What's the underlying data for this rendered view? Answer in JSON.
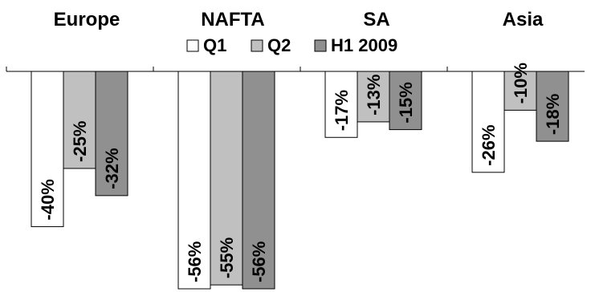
{
  "chart_data": {
    "type": "bar",
    "categories": [
      "Europe",
      "NAFTA",
      "SA",
      "Asia"
    ],
    "series": [
      {
        "name": "Q1",
        "values": [
          -40,
          -56,
          -17,
          -26
        ],
        "labels": [
          "-40%",
          "-56%",
          "-17%",
          "-26%"
        ],
        "color": "#ffffff"
      },
      {
        "name": "Q2",
        "values": [
          -25,
          -55,
          -13,
          -10
        ],
        "labels": [
          "-25%",
          "-55%",
          "-13%",
          "-10%"
        ],
        "color": "#c0c0c0"
      },
      {
        "name": "H1 2009",
        "values": [
          -32,
          -56,
          -15,
          -18
        ],
        "labels": [
          "-32%",
          "-56%",
          "-15%",
          "-18%"
        ],
        "color": "#909090"
      }
    ],
    "ylim": [
      -56,
      0
    ],
    "legend_position": "top-center",
    "grid": false,
    "title": "",
    "xlabel": "",
    "ylabel": ""
  }
}
